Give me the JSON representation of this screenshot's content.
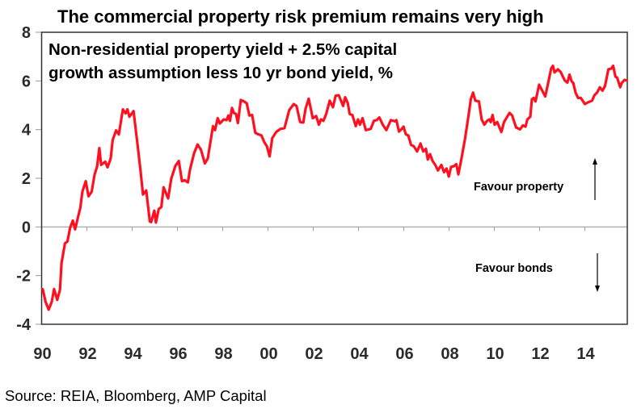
{
  "chart_data": {
    "type": "line",
    "title": "The commercial property risk premium remains very high",
    "subtitle_lines": [
      "Non-residential property yield + 2.5% capital",
      "growth assumption less 10 yr bond yield, %"
    ],
    "xlabel": "",
    "ylabel": "",
    "xlim": [
      1990,
      2015.9
    ],
    "ylim": [
      -4,
      8
    ],
    "y_ticks": [
      -4,
      -2,
      0,
      2,
      4,
      6,
      8
    ],
    "y_tick_labels": [
      "-4",
      "-2",
      "0",
      "2",
      "4",
      "6",
      "8"
    ],
    "x_ticks": [
      1990,
      1992,
      1994,
      1996,
      1998,
      2000,
      2002,
      2004,
      2006,
      2008,
      2010,
      2012,
      2014
    ],
    "x_tick_labels": [
      "90",
      "92",
      "94",
      "96",
      "98",
      "00",
      "02",
      "04",
      "06",
      "08",
      "10",
      "12",
      "14"
    ],
    "grid": false,
    "zero_line": true,
    "legend": "none",
    "annotations": [
      {
        "text": "Favour property",
        "direction": "up"
      },
      {
        "text": "Favour bonds",
        "direction": "down"
      }
    ],
    "source": "Source: REIA, Bloomberg, AMP Capital",
    "series": [
      {
        "name": "Commercial property risk premium",
        "color": "#ff1020",
        "x": [
          1990.05,
          1990.17,
          1990.31,
          1990.45,
          1990.55,
          1990.69,
          1990.81,
          1990.88,
          1991.03,
          1991.14,
          1991.26,
          1991.38,
          1991.48,
          1991.62,
          1991.71,
          1991.8,
          1991.95,
          1992.07,
          1992.21,
          1992.34,
          1992.45,
          1992.55,
          1992.63,
          1992.81,
          1992.91,
          1993.05,
          1993.14,
          1993.29,
          1993.41,
          1993.59,
          1993.71,
          1993.79,
          1993.88,
          1994.06,
          1994.24,
          1994.36,
          1994.48,
          1994.62,
          1994.78,
          1994.84,
          1994.98,
          1995.05,
          1995.17,
          1995.29,
          1995.39,
          1995.59,
          1995.73,
          1995.91,
          1996.06,
          1996.2,
          1996.32,
          1996.46,
          1996.56,
          1996.74,
          1996.89,
          1997.04,
          1997.21,
          1997.34,
          1997.57,
          1997.66,
          1997.78,
          1997.87,
          1998.05,
          1998.17,
          1998.25,
          1998.32,
          1998.41,
          1998.49,
          1998.59,
          1998.67,
          1998.8,
          1998.94,
          1999.06,
          1999.18,
          1999.3,
          1999.44,
          1999.56,
          1999.71,
          1999.84,
          1999.95,
          2000.07,
          2000.19,
          2000.36,
          2000.55,
          2000.73,
          2000.94,
          2001.14,
          2001.26,
          2001.42,
          2001.56,
          2001.66,
          2001.8,
          2001.98,
          2002.13,
          2002.25,
          2002.34,
          2002.45,
          2002.57,
          2002.73,
          2002.87,
          2002.99,
          2003.13,
          2003.32,
          2003.41,
          2003.53,
          2003.61,
          2003.73,
          2003.88,
          2003.98,
          2004.06,
          2004.18,
          2004.32,
          2004.54,
          2004.68,
          2004.8,
          2004.92,
          2005.07,
          2005.23,
          2005.43,
          2005.61,
          2005.67,
          2005.79,
          2005.91,
          2005.99,
          2006.09,
          2006.2,
          2006.32,
          2006.44,
          2006.59,
          2006.74,
          2006.86,
          2006.98,
          2007.06,
          2007.16,
          2007.27,
          2007.39,
          2007.51,
          2007.66,
          2007.78,
          2007.89,
          2007.99,
          2008.09,
          2008.2,
          2008.32,
          2008.41,
          2008.53,
          2008.7,
          2008.88,
          2008.96,
          2009.06,
          2009.16,
          2009.32,
          2009.44,
          2009.56,
          2009.68,
          2009.78,
          2009.84,
          2009.92,
          2010.01,
          2010.13,
          2010.31,
          2010.43,
          2010.67,
          2010.79,
          2010.96,
          2011.14,
          2011.26,
          2011.38,
          2011.46,
          2011.59,
          2011.66,
          2011.74,
          2011.82,
          2011.98,
          2012.13,
          2012.25,
          2012.39,
          2012.51,
          2012.59,
          2012.66,
          2012.81,
          2012.93,
          2013.11,
          2013.23,
          2013.32,
          2013.41,
          2013.49,
          2013.59,
          2013.7,
          2013.82,
          2014.0,
          2014.16,
          2014.32,
          2014.42,
          2014.54,
          2014.66,
          2014.78,
          2014.89,
          2015.04,
          2015.17,
          2015.25,
          2015.35,
          2015.43,
          2015.56,
          2015.63,
          2015.75,
          2015.85
        ],
        "values": [
          -2.56,
          -3.07,
          -3.4,
          -3.07,
          -2.55,
          -3.0,
          -2.58,
          -1.49,
          -0.68,
          -0.6,
          -0.03,
          0.26,
          -0.1,
          0.46,
          0.79,
          1.45,
          1.88,
          1.26,
          1.45,
          2.15,
          2.48,
          3.24,
          2.55,
          2.68,
          2.45,
          2.81,
          3.57,
          3.97,
          3.8,
          4.83,
          4.67,
          4.83,
          4.53,
          4.76,
          3.37,
          2.38,
          1.33,
          1.5,
          0.23,
          0.2,
          0.67,
          0.18,
          0.73,
          0.82,
          1.63,
          1.17,
          1.99,
          2.51,
          2.71,
          1.88,
          1.92,
          1.83,
          2.38,
          3.04,
          3.39,
          3.17,
          2.61,
          2.81,
          4.14,
          3.98,
          4.47,
          4.25,
          4.42,
          4.39,
          4.58,
          4.36,
          4.89,
          4.69,
          4.64,
          4.27,
          5.22,
          5.16,
          5.08,
          4.58,
          4.6,
          3.87,
          3.81,
          3.76,
          3.48,
          3.32,
          2.9,
          3.65,
          3.9,
          4.03,
          4.06,
          4.8,
          5.05,
          4.97,
          4.31,
          4.29,
          4.86,
          5.27,
          4.47,
          4.56,
          4.2,
          4.42,
          4.36,
          4.64,
          5.19,
          4.92,
          5.39,
          5.41,
          4.97,
          5.33,
          5.08,
          4.64,
          4.6,
          4.14,
          4.42,
          4.2,
          4.47,
          3.98,
          4.03,
          4.36,
          4.39,
          4.5,
          4.2,
          3.98,
          4.39,
          4.34,
          4.39,
          3.92,
          4.03,
          4.12,
          3.81,
          3.76,
          3.37,
          3.32,
          3.1,
          3.43,
          3.1,
          3.21,
          2.77,
          2.99,
          2.71,
          2.55,
          2.32,
          2.55,
          2.25,
          2.4,
          2.07,
          2.47,
          2.49,
          2.58,
          2.16,
          2.71,
          3.59,
          4.69,
          5.25,
          5.52,
          5.19,
          5.16,
          4.42,
          4.2,
          4.36,
          4.42,
          4.31,
          4.6,
          4.2,
          4.31,
          3.9,
          4.31,
          4.69,
          4.58,
          4.09,
          4.01,
          4.17,
          4.12,
          4.42,
          4.53,
          5.25,
          5.3,
          5.16,
          5.85,
          5.58,
          5.36,
          5.96,
          6.51,
          6.62,
          6.35,
          6.48,
          6.37,
          6.02,
          5.93,
          6.26,
          5.99,
          5.91,
          5.52,
          5.3,
          5.3,
          5.05,
          5.13,
          5.19,
          5.41,
          5.52,
          5.74,
          5.6,
          5.79,
          6.48,
          6.51,
          6.62,
          6.18,
          6.13,
          5.74,
          5.91,
          6.04,
          6.02
        ]
      }
    ]
  }
}
